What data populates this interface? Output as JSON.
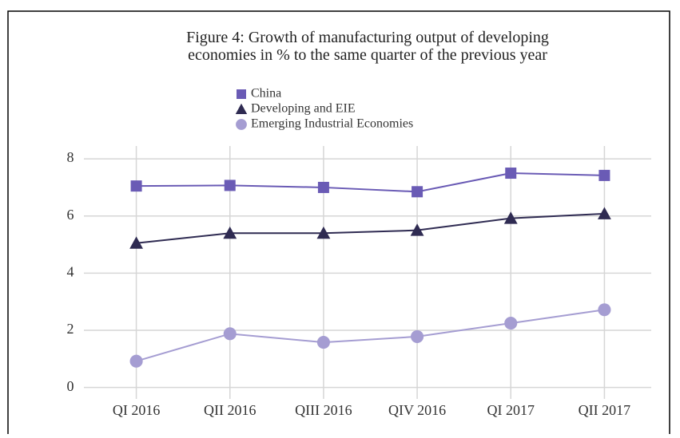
{
  "chart_data": {
    "type": "line",
    "title": "Figure 4: Growth of manufacturing output of developing economies in % to the same quarter of the previous year",
    "categories": [
      "QI 2016",
      "QII 2016",
      "QIII 2016",
      "QIV 2016",
      "QI 2017",
      "QII 2017"
    ],
    "series": [
      {
        "name": "China",
        "color": "#6a5bb5",
        "marker": "square",
        "values": [
          7.05,
          7.07,
          7.0,
          6.85,
          7.5,
          7.42
        ]
      },
      {
        "name": "Developing and EIE",
        "color": "#2f2b52",
        "marker": "triangle",
        "values": [
          5.05,
          5.4,
          5.4,
          5.5,
          5.92,
          6.08
        ]
      },
      {
        "name": "Emerging Industrial Economies",
        "color": "#a59dd2",
        "marker": "circle",
        "values": [
          0.92,
          1.88,
          1.58,
          1.78,
          2.25,
          2.72
        ]
      }
    ],
    "ylim": [
      -0.4,
      8.45
    ],
    "yticks": [
      0,
      2,
      4,
      6,
      8
    ],
    "grid": true,
    "legend": "top"
  }
}
